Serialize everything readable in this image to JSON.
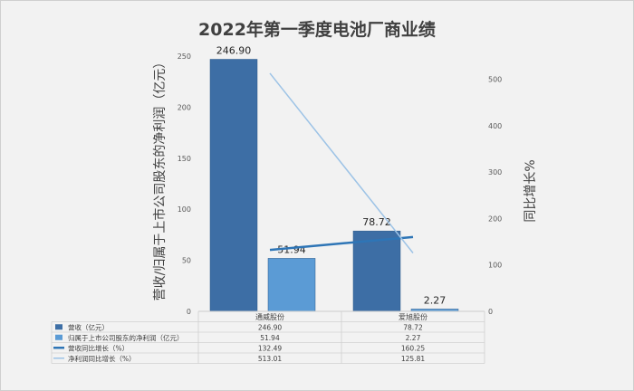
{
  "chart_data": {
    "type": "bar",
    "title": "2022年第一季度电池厂商业绩",
    "ylabel_left": "营收/归属于上市公司股东的净利润（亿元）",
    "ylabel_right": "同比增长%",
    "categories": [
      "通威股份",
      "爱旭股份"
    ],
    "ylim_left": [
      0,
      250
    ],
    "yticks_left": [
      0,
      50,
      100,
      150,
      200,
      250
    ],
    "ylim_right": [
      0,
      550
    ],
    "yticks_right": [
      0,
      100,
      200,
      300,
      400,
      500
    ],
    "grid": false,
    "legend_position": "bottom (data table)",
    "series": [
      {
        "name": "营收（亿元）",
        "kind": "bar",
        "axis": "left",
        "color": "#3d6ea5",
        "values": [
          246.9,
          78.72
        ]
      },
      {
        "name": "归属于上市公司股东的净利润（亿元）",
        "kind": "bar",
        "axis": "left",
        "color": "#5b9bd5",
        "values": [
          51.94,
          2.27
        ]
      },
      {
        "name": "营收同比增长（%）",
        "kind": "line",
        "axis": "right",
        "color": "#2e75b6",
        "values": [
          132.49,
          160.25
        ]
      },
      {
        "name": "净利润同比增长（%）",
        "kind": "line",
        "axis": "right",
        "color": "#9dc3e6",
        "values": [
          513.01,
          125.81
        ]
      }
    ],
    "data_labels": [
      "246.90",
      "51.94",
      "78.72",
      "2.27"
    ],
    "table_rows": [
      {
        "label": "营收（亿元）",
        "cells": [
          "246.90",
          "78.72"
        ]
      },
      {
        "label": "归属于上市公司股东的净利润（亿元）",
        "cells": [
          "51.94",
          "2.27"
        ]
      },
      {
        "label": "营收同比增长（%）",
        "cells": [
          "132.49",
          "160.25"
        ]
      },
      {
        "label": "净利润同比增长（%）",
        "cells": [
          "513.01",
          "125.81"
        ]
      }
    ]
  }
}
